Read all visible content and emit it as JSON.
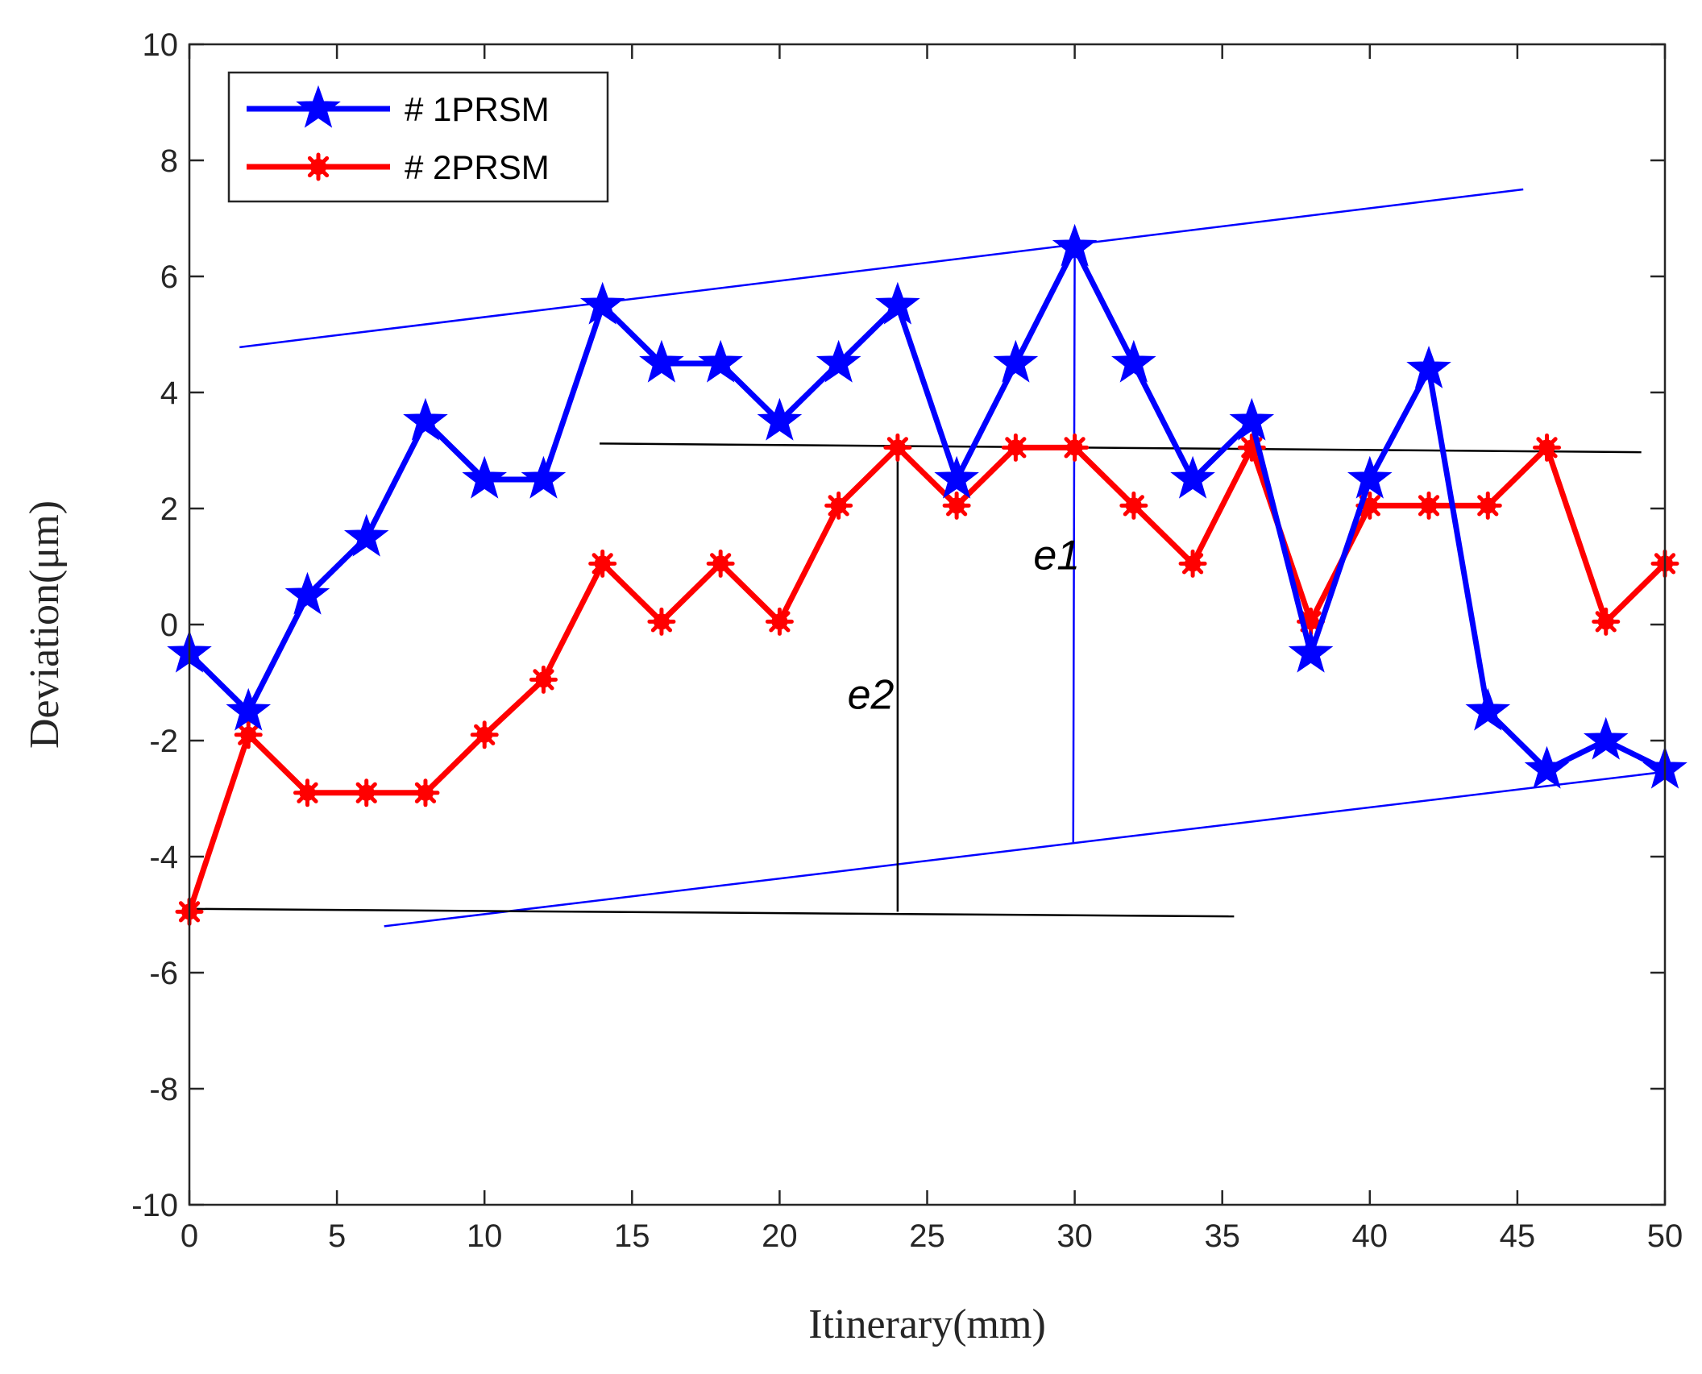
{
  "chart_data": {
    "type": "line",
    "title": "",
    "xlabel": "Itinerary(mm)",
    "ylabel": "Deviation(μm)",
    "xlim": [
      0,
      50
    ],
    "ylim": [
      -10,
      10
    ],
    "xticks": [
      0,
      5,
      10,
      15,
      20,
      25,
      30,
      35,
      40,
      45,
      50
    ],
    "yticks": [
      -10,
      -8,
      -6,
      -4,
      -2,
      0,
      2,
      4,
      6,
      8,
      10
    ],
    "grid": false,
    "legend_position": "top-left",
    "series": [
      {
        "name": "# 1PRSM",
        "color": "#0000ff",
        "marker": "star",
        "x": [
          0,
          2,
          4,
          6,
          8,
          10,
          12,
          14,
          16,
          18,
          20,
          22,
          24,
          26,
          28,
          30,
          32,
          34,
          36,
          38,
          40,
          42,
          44,
          46,
          48,
          50
        ],
        "y": [
          -0.5,
          -1.5,
          0.5,
          1.5,
          3.5,
          2.5,
          2.5,
          5.5,
          4.5,
          4.5,
          3.5,
          4.5,
          5.5,
          2.5,
          4.5,
          6.5,
          4.5,
          2.5,
          3.5,
          -0.5,
          2.5,
          4.4,
          -1.5,
          -2.5,
          -2.0,
          -2.5
        ]
      },
      {
        "name": "# 2PRSM",
        "color": "#ff0000",
        "marker": "asterisk",
        "x": [
          0,
          2,
          4,
          6,
          8,
          10,
          12,
          14,
          16,
          18,
          20,
          22,
          24,
          26,
          28,
          30,
          32,
          34,
          36,
          38,
          40,
          42,
          44,
          46,
          48,
          50
        ],
        "y": [
          -4.95,
          -1.9,
          -2.9,
          -2.9,
          -2.9,
          -1.9,
          -0.95,
          1.05,
          0.05,
          1.05,
          0.05,
          2.05,
          3.05,
          2.05,
          3.05,
          3.05,
          2.05,
          1.05,
          3.05,
          0.05,
          2.05,
          2.05,
          2.05,
          3.05,
          0.05,
          1.05
        ]
      }
    ],
    "reference_lines": [
      {
        "name": "upper-envelope",
        "color": "#0000ff",
        "from": [
          1.7,
          4.78
        ],
        "to": [
          45.2,
          7.5
        ]
      },
      {
        "name": "lower-envelope",
        "color": "#0000ff",
        "from": [
          6.6,
          -5.2
        ],
        "to": [
          49.8,
          -2.55
        ]
      },
      {
        "name": "top-reference",
        "color": "#000000",
        "from": [
          13.9,
          3.12
        ],
        "to": [
          49.2,
          2.97
        ]
      },
      {
        "name": "bottom-reference",
        "color": "#000000",
        "from": [
          0,
          -4.9
        ],
        "to": [
          35.4,
          -5.03
        ]
      },
      {
        "name": "e1-span",
        "color": "#0000ff",
        "from": [
          30,
          6.5
        ],
        "to": [
          29.95,
          -3.75
        ]
      },
      {
        "name": "e2-span",
        "color": "#000000",
        "from": [
          24,
          3.05
        ],
        "to": [
          24,
          -4.95
        ]
      }
    ],
    "annotations": [
      {
        "text": "e1",
        "x": 28.6,
        "y": 0.95
      },
      {
        "text": "e2",
        "x": 22.3,
        "y": -1.45
      }
    ]
  }
}
